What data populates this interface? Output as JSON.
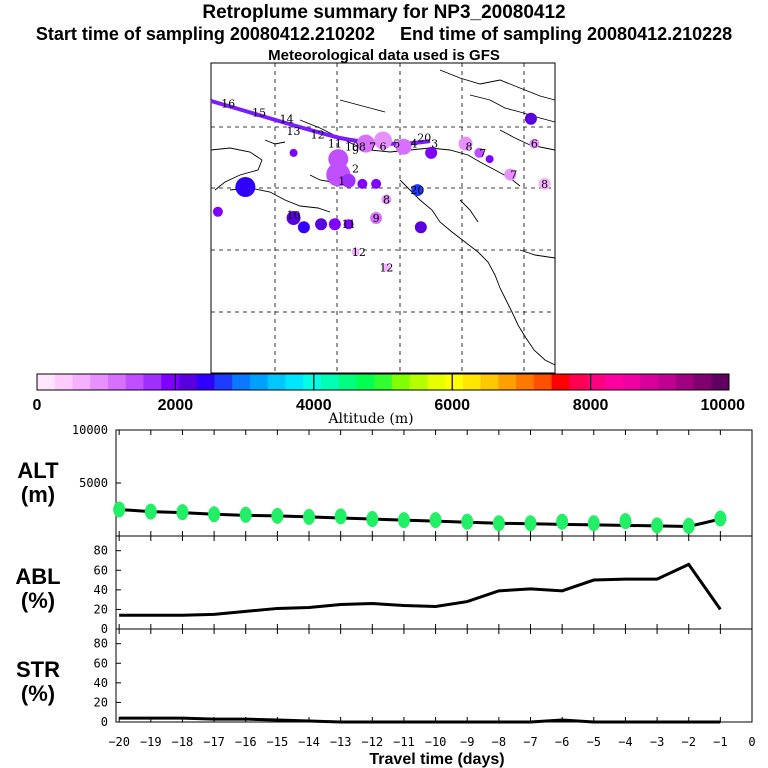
{
  "header": {
    "title": "Retroplume summary for NP3_20080412",
    "start": "Start time of sampling 20080412.210202",
    "end": "End time of sampling 20080412.210228",
    "met": "Meteorological data used is GFS"
  },
  "colorbar": {
    "label": "Altitude (m)",
    "ticks": [
      "0",
      "2000",
      "4000",
      "6000",
      "8000",
      "10000"
    ],
    "colors": [
      "#ffe6ff",
      "#ffccff",
      "#f5b0ff",
      "#e890ff",
      "#d870ff",
      "#c050ff",
      "#a030ff",
      "#8000ff",
      "#5a00e0",
      "#3000ff",
      "#1e3cff",
      "#0a78ff",
      "#00a0ff",
      "#00c8ff",
      "#00e6ff",
      "#00ffe6",
      "#00ffb4",
      "#00ff80",
      "#00ff50",
      "#30ff30",
      "#80ff00",
      "#b4ff00",
      "#e6ff00",
      "#ffff00",
      "#ffe600",
      "#ffc800",
      "#ffa000",
      "#ff7800",
      "#ff5000",
      "#ff0000",
      "#ff0050",
      "#ff0080",
      "#ff00a0",
      "#f000a0",
      "#d8009a",
      "#c00090",
      "#a00080",
      "#800070",
      "#600060"
    ]
  },
  "map": {
    "labels": [
      {
        "text": "16",
        "fx": 0.05,
        "fy": 0.13
      },
      {
        "text": "15",
        "fx": 0.14,
        "fy": 0.16
      },
      {
        "text": "14",
        "fx": 0.22,
        "fy": 0.18
      },
      {
        "text": "13",
        "fx": 0.24,
        "fy": 0.22
      },
      {
        "text": "12",
        "fx": 0.31,
        "fy": 0.23
      },
      {
        "text": "11",
        "fx": 0.36,
        "fy": 0.26
      },
      {
        "text": "10",
        "fx": 0.41,
        "fy": 0.27
      },
      {
        "text": "9",
        "fx": 0.42,
        "fy": 0.28
      },
      {
        "text": "8",
        "fx": 0.44,
        "fy": 0.27
      },
      {
        "text": "7",
        "fx": 0.47,
        "fy": 0.27
      },
      {
        "text": "6",
        "fx": 0.5,
        "fy": 0.27
      },
      {
        "text": "5",
        "fx": 0.54,
        "fy": 0.26
      },
      {
        "text": "4",
        "fx": 0.59,
        "fy": 0.26
      },
      {
        "text": "3",
        "fx": 0.65,
        "fy": 0.26
      },
      {
        "text": "2",
        "fx": 0.42,
        "fy": 0.34
      },
      {
        "text": "1",
        "fx": 0.38,
        "fy": 0.38
      },
      {
        "text": "8",
        "fx": 0.75,
        "fy": 0.27
      },
      {
        "text": "7",
        "fx": 0.79,
        "fy": 0.29
      },
      {
        "text": "6",
        "fx": 0.94,
        "fy": 0.26
      },
      {
        "text": "7",
        "fx": 0.88,
        "fy": 0.36
      },
      {
        "text": "8",
        "fx": 0.97,
        "fy": 0.39
      },
      {
        "text": "8",
        "fx": 0.51,
        "fy": 0.44
      },
      {
        "text": "9",
        "fx": 0.48,
        "fy": 0.5
      },
      {
        "text": "10",
        "fx": 0.24,
        "fy": 0.49
      },
      {
        "text": "11",
        "fx": 0.4,
        "fy": 0.52
      },
      {
        "text": "12",
        "fx": 0.43,
        "fy": 0.61
      },
      {
        "text": "12",
        "fx": 0.51,
        "fy": 0.66
      },
      {
        "text": "20",
        "fx": 0.62,
        "fy": 0.24
      },
      {
        "text": "20",
        "fx": 0.6,
        "fy": 0.41
      }
    ],
    "dots": [
      {
        "fx": 0.93,
        "fy": 0.18,
        "r": 6,
        "c": "#5a00e0"
      },
      {
        "fx": 0.74,
        "fy": 0.26,
        "r": 7,
        "c": "#e890ff"
      },
      {
        "fx": 0.78,
        "fy": 0.29,
        "r": 5,
        "c": "#c050ff"
      },
      {
        "fx": 0.81,
        "fy": 0.31,
        "r": 4,
        "c": "#8000ff"
      },
      {
        "fx": 0.94,
        "fy": 0.26,
        "r": 5,
        "c": "#e890ff"
      },
      {
        "fx": 0.87,
        "fy": 0.36,
        "r": 6,
        "c": "#e890ff"
      },
      {
        "fx": 0.97,
        "fy": 0.39,
        "r": 6,
        "c": "#f5b0ff"
      },
      {
        "fx": 0.45,
        "fy": 0.26,
        "r": 9,
        "c": "#d870ff"
      },
      {
        "fx": 0.5,
        "fy": 0.25,
        "r": 9,
        "c": "#e890ff"
      },
      {
        "fx": 0.56,
        "fy": 0.27,
        "r": 8,
        "c": "#d870ff"
      },
      {
        "fx": 0.37,
        "fy": 0.31,
        "r": 10,
        "c": "#c050ff"
      },
      {
        "fx": 0.37,
        "fy": 0.36,
        "r": 12,
        "c": "#c050ff"
      },
      {
        "fx": 0.4,
        "fy": 0.38,
        "r": 7,
        "c": "#a030ff"
      },
      {
        "fx": 0.44,
        "fy": 0.39,
        "r": 5,
        "c": "#8000ff"
      },
      {
        "fx": 0.48,
        "fy": 0.39,
        "r": 5,
        "c": "#8000ff"
      },
      {
        "fx": 0.6,
        "fy": 0.41,
        "r": 6,
        "c": "#1e3cff"
      },
      {
        "fx": 0.64,
        "fy": 0.29,
        "r": 6,
        "c": "#8000ff"
      },
      {
        "fx": 0.24,
        "fy": 0.29,
        "r": 4,
        "c": "#8000ff"
      },
      {
        "fx": 0.1,
        "fy": 0.4,
        "r": 10,
        "c": "#3000ff"
      },
      {
        "fx": 0.02,
        "fy": 0.48,
        "r": 5,
        "c": "#8000ff"
      },
      {
        "fx": 0.24,
        "fy": 0.5,
        "r": 7,
        "c": "#5a00e0"
      },
      {
        "fx": 0.27,
        "fy": 0.53,
        "r": 6,
        "c": "#3000ff"
      },
      {
        "fx": 0.32,
        "fy": 0.52,
        "r": 6,
        "c": "#5a00e0"
      },
      {
        "fx": 0.36,
        "fy": 0.52,
        "r": 6,
        "c": "#8000ff"
      },
      {
        "fx": 0.4,
        "fy": 0.52,
        "r": 5,
        "c": "#8000ff"
      },
      {
        "fx": 0.48,
        "fy": 0.5,
        "r": 6,
        "c": "#d870ff"
      },
      {
        "fx": 0.51,
        "fy": 0.44,
        "r": 5,
        "c": "#e890ff"
      },
      {
        "fx": 0.61,
        "fy": 0.53,
        "r": 6,
        "c": "#5a00e0"
      },
      {
        "fx": 0.42,
        "fy": 0.61,
        "r": 4,
        "c": "#f5b0ff"
      },
      {
        "fx": 0.51,
        "fy": 0.66,
        "r": 4,
        "c": "#f5b0ff"
      }
    ]
  },
  "chart_data": [
    {
      "type": "scatter+line",
      "panel": "ALT",
      "ylabel": "ALT\n(m)",
      "ylabel_line1": "ALT",
      "ylabel_line2": "(m)",
      "ylim": [
        0,
        10000
      ],
      "yticks": [
        "10000",
        "5000"
      ],
      "ytick_values": [
        10000,
        5000
      ],
      "x": [
        -20,
        -19,
        -18,
        -17,
        -16,
        -15,
        -14,
        -13,
        -12,
        -11,
        -10,
        -9,
        -8,
        -7,
        -6,
        -5,
        -4,
        -3,
        -2,
        -1
      ],
      "line": [
        2500,
        2300,
        2200,
        2050,
        1950,
        1900,
        1800,
        1700,
        1600,
        1500,
        1400,
        1300,
        1200,
        1150,
        1100,
        1050,
        1000,
        950,
        900,
        1600
      ],
      "points": [
        2500,
        2300,
        2250,
        2050,
        2000,
        1900,
        1800,
        1850,
        1600,
        1500,
        1500,
        1350,
        1200,
        1200,
        1350,
        1200,
        1400,
        1000,
        950,
        1650
      ],
      "point_color": "#22ee66"
    },
    {
      "type": "line",
      "panel": "ABL",
      "ylabel_line1": "ABL",
      "ylabel_line2": "(%)",
      "ylim": [
        0,
        95
      ],
      "yticks": [
        "80",
        "60",
        "40",
        "20",
        "0"
      ],
      "ytick_values": [
        80,
        60,
        40,
        20,
        0
      ],
      "x": [
        -20,
        -19,
        -18,
        -17,
        -16,
        -15,
        -14,
        -13,
        -12,
        -11,
        -10,
        -9,
        -8,
        -7,
        -6,
        -5,
        -4,
        -3,
        -2,
        -1
      ],
      "values": [
        14,
        14,
        14,
        15,
        18,
        21,
        22,
        25,
        26,
        24,
        23,
        28,
        39,
        41,
        39,
        50,
        51,
        51,
        66,
        20
      ]
    },
    {
      "type": "line",
      "panel": "STR",
      "ylabel_line1": "STR",
      "ylabel_line2": "(%)",
      "ylim": [
        0,
        95
      ],
      "yticks": [
        "80",
        "60",
        "40",
        "20",
        "0"
      ],
      "ytick_values": [
        80,
        60,
        40,
        20,
        0
      ],
      "x": [
        -20,
        -19,
        -18,
        -17,
        -16,
        -15,
        -14,
        -13,
        -12,
        -11,
        -10,
        -9,
        -8,
        -7,
        -6,
        -5,
        -4,
        -3,
        -2,
        -1
      ],
      "values": [
        4,
        4,
        4,
        3,
        3,
        2,
        1,
        0,
        0,
        0,
        0,
        0,
        0,
        0,
        2,
        0,
        0,
        0,
        0,
        0
      ],
      "xlabel": "Travel time (days)",
      "xticks": [
        "−20",
        "−19",
        "−18",
        "−17",
        "−16",
        "−15",
        "−14",
        "−13",
        "−12",
        "−11",
        "−10",
        "−9",
        "−8",
        "−7",
        "−6",
        "−5",
        "−4",
        "−3",
        "−2",
        "−1",
        "0"
      ],
      "xtick_values": [
        -20,
        -19,
        -18,
        -17,
        -16,
        -15,
        -14,
        -13,
        -12,
        -11,
        -10,
        -9,
        -8,
        -7,
        -6,
        -5,
        -4,
        -3,
        -2,
        -1,
        0
      ]
    }
  ]
}
